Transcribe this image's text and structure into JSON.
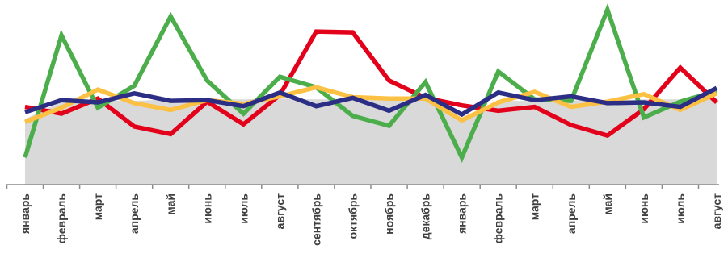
{
  "chart_data": {
    "type": "line",
    "categories": [
      "январь",
      "февраль",
      "март",
      "апрель",
      "май",
      "июнь",
      "июль",
      "август",
      "сентябрь",
      "октябрь",
      "ноябрь",
      "декабрь",
      "январь",
      "февраль",
      "март",
      "апрель",
      "май",
      "июнь",
      "июль",
      "август"
    ],
    "ylim": [
      0,
      100
    ],
    "grid": false,
    "legend": "none",
    "area": {
      "color": "#d9d9d9",
      "values": [
        27.5,
        39,
        40,
        39.5,
        40.5,
        40.5,
        40.5,
        41,
        40.5,
        40.5,
        40.5,
        40.5,
        28.5,
        39.5,
        39.5,
        40,
        39.5,
        40.5,
        40.5,
        41.5
      ]
    },
    "series": [
      {
        "color": "#e3001b",
        "values": [
          35.5,
          31,
          41,
          22.5,
          17.5,
          39,
          24,
          43.5,
          85.5,
          85,
          53,
          41.5,
          36.5,
          33,
          35.5,
          23.5,
          16.5,
          34,
          61.5,
          38.5
        ]
      },
      {
        "color": "#4cad4b",
        "values": [
          2,
          83,
          35,
          49.5,
          95.5,
          53,
          31,
          55.5,
          48.5,
          29.5,
          23,
          52,
          2,
          59,
          40.5,
          39.5,
          100,
          28.5,
          39,
          46
        ]
      },
      {
        "color": "#fcc043",
        "values": [
          25.5,
          35,
          47,
          38,
          33.5,
          40,
          37.5,
          42.5,
          48.5,
          42,
          41,
          41,
          26.5,
          38.5,
          45.5,
          35.5,
          39,
          44,
          33.5,
          44.5
        ]
      },
      {
        "color": "#2b2e84",
        "values": [
          32,
          40,
          38.5,
          44.5,
          39.5,
          40,
          36,
          45,
          36,
          41.5,
          33,
          43.5,
          30.5,
          45,
          40,
          42.5,
          38,
          38.5,
          35.5,
          48
        ]
      }
    ]
  }
}
